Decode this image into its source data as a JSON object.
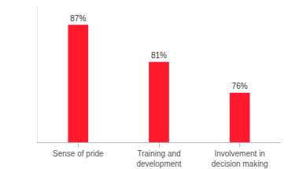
{
  "chart_data": {
    "type": "bar",
    "categories": [
      "Sense of pride",
      "Training and development",
      "Involvement in decision making"
    ],
    "values": [
      87,
      81,
      76
    ],
    "value_labels": [
      "87%",
      "81%",
      "76%"
    ],
    "color": "#ff1a2e",
    "ylim": [
      68,
      90
    ],
    "yticks": [],
    "grid": false,
    "data_labels": true,
    "tick_labels": "x"
  }
}
